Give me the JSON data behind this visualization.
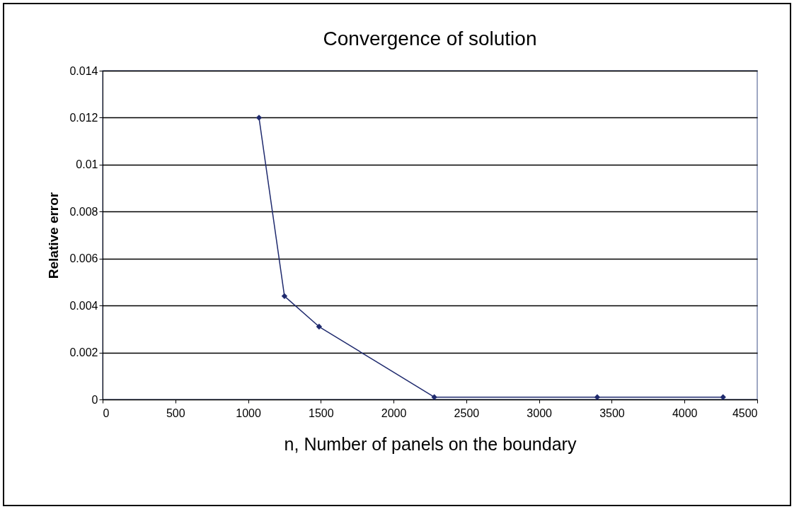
{
  "chart_data": {
    "type": "line",
    "title": "Convergence of solution",
    "xlabel": "n, Number of panels on the boundary",
    "ylabel": "Relative error",
    "x": [
      1075,
      1250,
      1488,
      2280,
      3400,
      4265
    ],
    "series": [
      {
        "color": "#1f2a6e",
        "values": [
          0.012,
          0.0044,
          0.0031,
          0.0001,
          0.0001,
          0.0001
        ]
      }
    ],
    "xlim": [
      0,
      4500
    ],
    "xticks": [
      0,
      500,
      1000,
      1500,
      2000,
      2500,
      3000,
      3500,
      4000,
      4500
    ],
    "ylim": [
      0,
      0.014
    ],
    "yticks": [
      0,
      0.002,
      0.004,
      0.006,
      0.008,
      0.01,
      0.012,
      0.014
    ],
    "grid": "y",
    "marker": "diamond",
    "line_style": "solid",
    "legend": false
  }
}
